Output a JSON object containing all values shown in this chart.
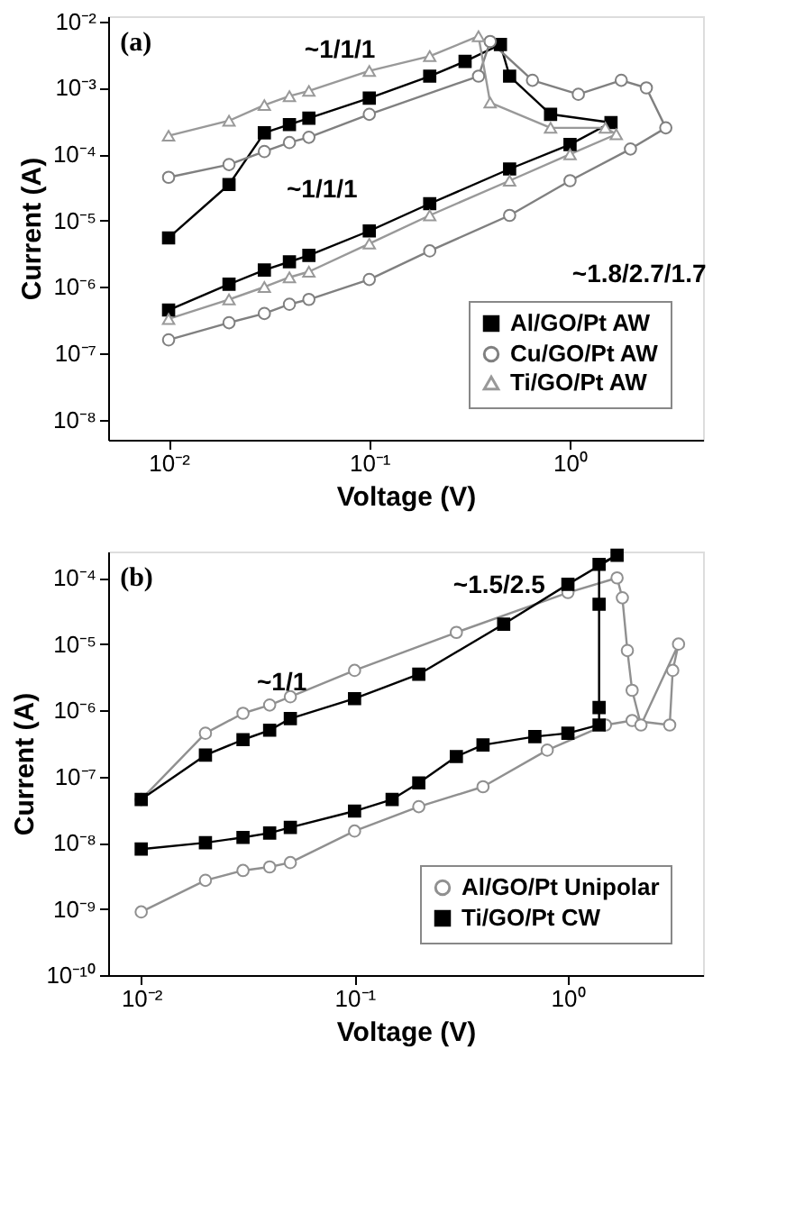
{
  "chart_data": [
    {
      "type": "line",
      "xlabel": "Voltage (V)",
      "ylabel": "Current (A)",
      "log": "xy",
      "grid": false,
      "legend": "bottom right",
      "line_style": "solid",
      "xlim": [
        0.005,
        4.6
      ],
      "ylim": [
        5e-09,
        0.012
      ],
      "xticks": [
        {
          "value": 0.01,
          "label": "10⁻²"
        },
        {
          "value": 0.1,
          "label": "10⁻¹"
        },
        {
          "value": 1,
          "label": "10⁰"
        }
      ],
      "yticks": [
        {
          "value": 1e-08,
          "label": "10⁻⁸"
        },
        {
          "value": 1e-07,
          "label": "10⁻⁷"
        },
        {
          "value": 1e-06,
          "label": "10⁻⁶"
        },
        {
          "value": 1e-05,
          "label": "10⁻⁵"
        },
        {
          "value": 0.0001,
          "label": "10⁻⁴"
        },
        {
          "value": 0.001,
          "label": "10⁻³"
        },
        {
          "value": 0.01,
          "label": "10⁻²"
        }
      ],
      "annotations": [
        "(a)",
        "~1/1/1",
        "~1/1/1",
        "~1.8/2.7/1.7"
      ],
      "series": [
        {
          "name": "Al/GO/Pt AW",
          "color": "#000000",
          "marker": "square",
          "x": [
            0.01,
            0.02,
            0.03,
            0.04,
            0.05,
            0.1,
            0.2,
            0.5,
            1.0,
            1.6,
            0.8,
            0.5,
            0.45,
            0.3,
            0.2,
            0.1,
            0.05,
            0.04,
            0.03,
            0.02,
            0.01
          ],
          "values": [
            4.5e-07,
            1.1e-06,
            1.8e-06,
            2.4e-06,
            3e-06,
            7e-06,
            1.8e-05,
            6e-05,
            0.00014,
            0.0003,
            0.0004,
            0.0015,
            0.0045,
            0.0025,
            0.0015,
            0.0007,
            0.00035,
            0.00028,
            0.00021,
            3.5e-05,
            5.5e-06
          ]
        },
        {
          "name": "Cu/GO/Pt AW",
          "color": "#808080",
          "marker": "circle",
          "x": [
            0.01,
            0.02,
            0.03,
            0.04,
            0.05,
            0.1,
            0.2,
            0.5,
            1.0,
            2.0,
            3.0,
            2.4,
            1.8,
            1.1,
            0.65,
            0.4,
            0.35,
            0.1,
            0.05,
            0.04,
            0.03,
            0.02,
            0.01
          ],
          "values": [
            1.6e-07,
            2.9e-07,
            4e-07,
            5.5e-07,
            6.5e-07,
            1.3e-06,
            3.5e-06,
            1.2e-05,
            4e-05,
            0.00012,
            0.00025,
            0.001,
            0.0013,
            0.0008,
            0.0013,
            0.005,
            0.0015,
            0.0004,
            0.00018,
            0.00015,
            0.00011,
            7e-05,
            4.5e-05
          ]
        },
        {
          "name": "Ti/GO/Pt AW",
          "color": "#999999",
          "marker": "triangle",
          "x": [
            0.01,
            0.02,
            0.03,
            0.04,
            0.05,
            0.1,
            0.2,
            0.5,
            1.0,
            1.7,
            1.5,
            0.8,
            0.4,
            0.35,
            0.2,
            0.1,
            0.05,
            0.04,
            0.03,
            0.02,
            0.01
          ],
          "values": [
            3.3e-07,
            6.5e-07,
            1e-06,
            1.4e-06,
            1.7e-06,
            4.5e-06,
            1.2e-05,
            4e-05,
            0.0001,
            0.0002,
            0.00025,
            0.00025,
            0.0006,
            0.006,
            0.003,
            0.0018,
            0.0009,
            0.00075,
            0.00055,
            0.00032,
            0.00019
          ]
        }
      ]
    },
    {
      "type": "line",
      "xlabel": "Voltage (V)",
      "ylabel": "Current (A)",
      "log": "xy",
      "grid": false,
      "legend": "bottom right",
      "line_style": "solid",
      "xlim": [
        0.007,
        4.3
      ],
      "ylim": [
        1e-10,
        0.00025
      ],
      "xticks": [
        {
          "value": 0.01,
          "label": "10⁻²"
        },
        {
          "value": 0.1,
          "label": "10⁻¹"
        },
        {
          "value": 1,
          "label": "10⁰"
        }
      ],
      "yticks": [
        {
          "value": 1e-10,
          "label": "10⁻¹⁰"
        },
        {
          "value": 1e-09,
          "label": "10⁻⁹"
        },
        {
          "value": 1e-08,
          "label": "10⁻⁸"
        },
        {
          "value": 1e-07,
          "label": "10⁻⁷"
        },
        {
          "value": 1e-06,
          "label": "10⁻⁶"
        },
        {
          "value": 1e-05,
          "label": "10⁻⁵"
        },
        {
          "value": 0.0001,
          "label": "10⁻⁴"
        }
      ],
      "annotations": [
        "(b)",
        "~1/1",
        "~1.5/2.5"
      ],
      "series": [
        {
          "name": "Al/GO/Pt Unipolar",
          "color": "#909090",
          "marker": "circle",
          "x": [
            0.01,
            0.02,
            0.03,
            0.04,
            0.05,
            0.1,
            0.2,
            0.4,
            0.8,
            1.5,
            2.0,
            3.0,
            3.1,
            3.3,
            2.2,
            2.0,
            1.9,
            1.8,
            1.7,
            1.0,
            0.3,
            0.1,
            0.05,
            0.04,
            0.03,
            0.02,
            0.01
          ],
          "values": [
            9e-10,
            2.7e-09,
            3.8e-09,
            4.3e-09,
            5e-09,
            1.5e-08,
            3.5e-08,
            7e-08,
            2.5e-07,
            6e-07,
            7e-07,
            6e-07,
            4e-06,
            1e-05,
            6e-07,
            2e-06,
            8e-06,
            5e-05,
            0.0001,
            6e-05,
            1.5e-05,
            4e-06,
            1.6e-06,
            1.2e-06,
            9e-07,
            4.5e-07,
            4.5e-08
          ]
        },
        {
          "name": "Ti/GO/Pt CW",
          "color": "#000000",
          "marker": "square",
          "x": [
            0.01,
            0.02,
            0.03,
            0.04,
            0.05,
            0.1,
            0.15,
            0.2,
            0.3,
            0.4,
            0.7,
            1.0,
            1.4,
            1.4,
            1.4,
            1.4,
            1.7,
            1.0,
            0.5,
            0.2,
            0.1,
            0.05,
            0.04,
            0.03,
            0.02,
            0.01
          ],
          "values": [
            8e-09,
            1e-08,
            1.2e-08,
            1.4e-08,
            1.7e-08,
            3e-08,
            4.5e-08,
            8e-08,
            2e-07,
            3e-07,
            4e-07,
            4.5e-07,
            6e-07,
            1.1e-06,
            4e-05,
            0.00016,
            0.00022,
            8e-05,
            2e-05,
            3.5e-06,
            1.5e-06,
            7.5e-07,
            5e-07,
            3.6e-07,
            2.1e-07,
            4.5e-08
          ]
        }
      ]
    }
  ]
}
